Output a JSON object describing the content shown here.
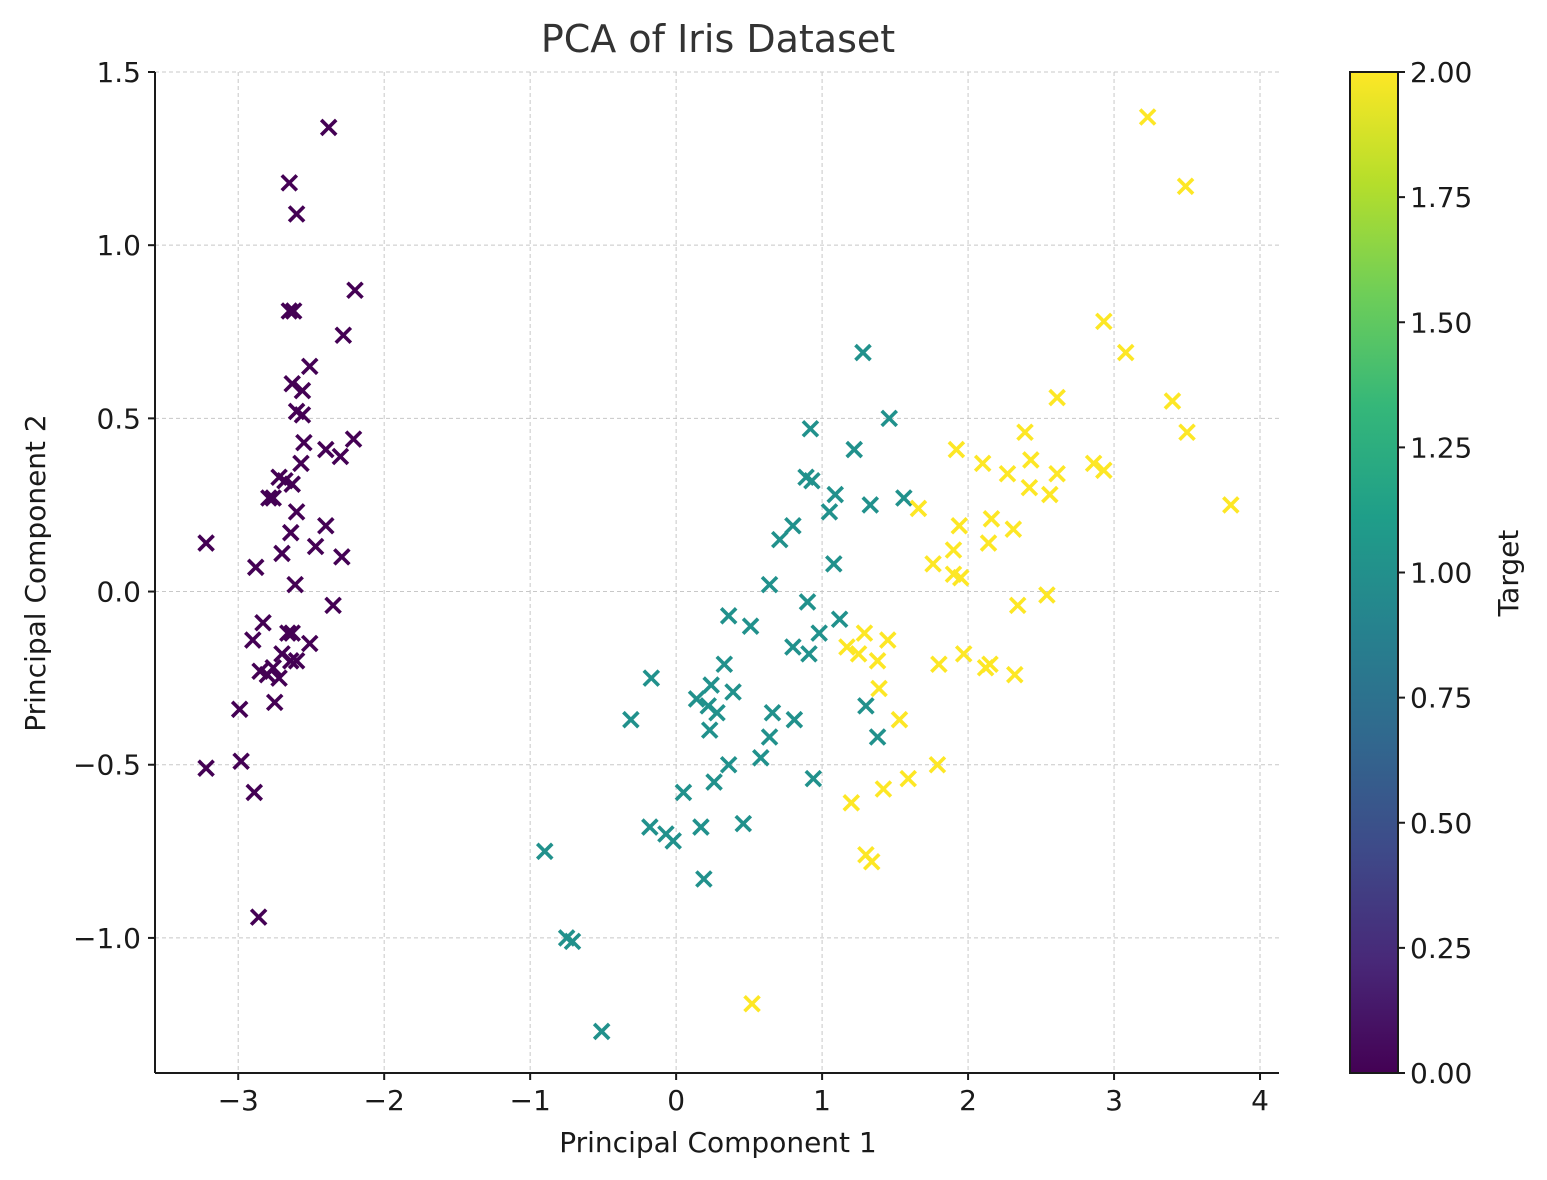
{
  "chart_data": {
    "type": "scatter",
    "title": "PCA of Iris Dataset",
    "xlabel": "Principal Component 1",
    "ylabel": "Principal Component 2",
    "xlim": [
      -3.57,
      4.13
    ],
    "ylim": [
      -1.39,
      1.5
    ],
    "xticks": [
      -3,
      -2,
      -1,
      0,
      1,
      2,
      3,
      4
    ],
    "xtick_labels": [
      "−3",
      "−2",
      "−1",
      "0",
      "1",
      "2",
      "3",
      "4"
    ],
    "yticks": [
      -1.0,
      -0.5,
      0.0,
      0.5,
      1.0,
      1.5
    ],
    "ytick_labels": [
      "−1.0",
      "−0.5",
      "0.0",
      "0.5",
      "1.0",
      "1.5"
    ],
    "grid": true,
    "marker": "x",
    "colormap": "viridis",
    "colorbar": {
      "label": "Target",
      "range": [
        0.0,
        2.0
      ],
      "ticks": [
        "0.00",
        "0.25",
        "0.50",
        "0.75",
        "1.00",
        "1.25",
        "1.50",
        "1.75",
        "2.00"
      ],
      "gradient": [
        "#440154",
        "#482878",
        "#3e4a89",
        "#31688e",
        "#26828e",
        "#1f9e89",
        "#35b779",
        "#6ece58",
        "#b5de2b",
        "#fde725"
      ]
    },
    "series": [
      {
        "target": 0,
        "color": "#440154",
        "points": [
          [
            -2.38,
            1.34
          ],
          [
            -2.65,
            1.18
          ],
          [
            -2.6,
            1.09
          ],
          [
            -2.2,
            0.87
          ],
          [
            -2.65,
            0.81
          ],
          [
            -2.62,
            0.81
          ],
          [
            -2.28,
            0.74
          ],
          [
            -2.51,
            0.65
          ],
          [
            -2.63,
            0.6
          ],
          [
            -2.56,
            0.58
          ],
          [
            -2.6,
            0.52
          ],
          [
            -2.56,
            0.51
          ],
          [
            -2.4,
            0.41
          ],
          [
            -2.55,
            0.43
          ],
          [
            -2.21,
            0.44
          ],
          [
            -2.3,
            0.39
          ],
          [
            -2.57,
            0.37
          ],
          [
            -2.72,
            0.33
          ],
          [
            -2.68,
            0.32
          ],
          [
            -2.63,
            0.31
          ],
          [
            -2.79,
            0.27
          ],
          [
            -2.76,
            0.27
          ],
          [
            -2.6,
            0.23
          ],
          [
            -2.4,
            0.19
          ],
          [
            -2.64,
            0.17
          ],
          [
            -2.47,
            0.13
          ],
          [
            -3.22,
            0.14
          ],
          [
            -2.7,
            0.11
          ],
          [
            -2.29,
            0.1
          ],
          [
            -2.88,
            0.07
          ],
          [
            -2.61,
            0.02
          ],
          [
            -2.35,
            -0.04
          ],
          [
            -2.83,
            -0.09
          ],
          [
            -2.66,
            -0.12
          ],
          [
            -2.63,
            -0.12
          ],
          [
            -2.9,
            -0.14
          ],
          [
            -2.51,
            -0.15
          ],
          [
            -2.7,
            -0.18
          ],
          [
            -2.6,
            -0.2
          ],
          [
            -2.64,
            -0.2
          ],
          [
            -2.76,
            -0.22
          ],
          [
            -2.85,
            -0.23
          ],
          [
            -2.8,
            -0.24
          ],
          [
            -2.72,
            -0.25
          ],
          [
            -2.75,
            -0.32
          ],
          [
            -2.99,
            -0.34
          ],
          [
            -2.98,
            -0.49
          ],
          [
            -3.22,
            -0.51
          ],
          [
            -2.89,
            -0.58
          ],
          [
            -2.86,
            -0.94
          ]
        ]
      },
      {
        "target": 1,
        "color": "#21918c",
        "points": [
          [
            1.28,
            0.69
          ],
          [
            1.46,
            0.5
          ],
          [
            0.92,
            0.47
          ],
          [
            1.22,
            0.41
          ],
          [
            0.89,
            0.33
          ],
          [
            0.93,
            0.32
          ],
          [
            1.09,
            0.28
          ],
          [
            1.56,
            0.27
          ],
          [
            1.33,
            0.25
          ],
          [
            1.05,
            0.23
          ],
          [
            0.8,
            0.19
          ],
          [
            0.71,
            0.15
          ],
          [
            1.08,
            0.08
          ],
          [
            0.64,
            0.02
          ],
          [
            0.9,
            -0.03
          ],
          [
            0.36,
            -0.07
          ],
          [
            1.12,
            -0.08
          ],
          [
            0.51,
            -0.1
          ],
          [
            0.98,
            -0.12
          ],
          [
            0.8,
            -0.16
          ],
          [
            0.91,
            -0.18
          ],
          [
            0.33,
            -0.21
          ],
          [
            -0.17,
            -0.25
          ],
          [
            0.24,
            -0.27
          ],
          [
            0.39,
            -0.29
          ],
          [
            0.14,
            -0.31
          ],
          [
            0.22,
            -0.33
          ],
          [
            1.3,
            -0.33
          ],
          [
            0.28,
            -0.35
          ],
          [
            0.66,
            -0.35
          ],
          [
            -0.31,
            -0.37
          ],
          [
            0.81,
            -0.37
          ],
          [
            0.23,
            -0.4
          ],
          [
            0.64,
            -0.42
          ],
          [
            1.38,
            -0.42
          ],
          [
            0.58,
            -0.48
          ],
          [
            0.36,
            -0.5
          ],
          [
            0.94,
            -0.54
          ],
          [
            0.26,
            -0.55
          ],
          [
            0.05,
            -0.58
          ],
          [
            0.46,
            -0.67
          ],
          [
            -0.18,
            -0.68
          ],
          [
            0.17,
            -0.68
          ],
          [
            -0.07,
            -0.7
          ],
          [
            -0.02,
            -0.72
          ],
          [
            -0.9,
            -0.75
          ],
          [
            0.19,
            -0.83
          ],
          [
            -0.75,
            -1.0
          ],
          [
            -0.71,
            -1.01
          ],
          [
            -0.51,
            -1.27
          ]
        ]
      },
      {
        "target": 2,
        "color": "#fde725",
        "points": [
          [
            3.23,
            1.37
          ],
          [
            3.49,
            1.17
          ],
          [
            2.93,
            0.78
          ],
          [
            3.08,
            0.69
          ],
          [
            2.61,
            0.56
          ],
          [
            3.4,
            0.55
          ],
          [
            2.39,
            0.46
          ],
          [
            3.5,
            0.46
          ],
          [
            1.92,
            0.41
          ],
          [
            2.1,
            0.37
          ],
          [
            2.43,
            0.38
          ],
          [
            2.86,
            0.37
          ],
          [
            2.93,
            0.35
          ],
          [
            2.27,
            0.34
          ],
          [
            2.61,
            0.34
          ],
          [
            2.42,
            0.3
          ],
          [
            2.56,
            0.28
          ],
          [
            3.8,
            0.25
          ],
          [
            1.66,
            0.24
          ],
          [
            2.16,
            0.21
          ],
          [
            1.94,
            0.19
          ],
          [
            2.31,
            0.18
          ],
          [
            2.14,
            0.14
          ],
          [
            1.9,
            0.12
          ],
          [
            1.76,
            0.08
          ],
          [
            1.9,
            0.05
          ],
          [
            1.95,
            0.04
          ],
          [
            2.54,
            -0.01
          ],
          [
            2.34,
            -0.04
          ],
          [
            1.29,
            -0.12
          ],
          [
            1.45,
            -0.14
          ],
          [
            1.17,
            -0.16
          ],
          [
            1.25,
            -0.18
          ],
          [
            1.97,
            -0.18
          ],
          [
            1.38,
            -0.2
          ],
          [
            1.8,
            -0.21
          ],
          [
            2.15,
            -0.21
          ],
          [
            2.12,
            -0.22
          ],
          [
            2.32,
            -0.24
          ],
          [
            1.39,
            -0.28
          ],
          [
            1.53,
            -0.37
          ],
          [
            1.79,
            -0.5
          ],
          [
            1.59,
            -0.54
          ],
          [
            1.42,
            -0.57
          ],
          [
            1.2,
            -0.61
          ],
          [
            1.3,
            -0.76
          ],
          [
            1.34,
            -0.78
          ],
          [
            0.52,
            -1.19
          ]
        ]
      }
    ]
  }
}
